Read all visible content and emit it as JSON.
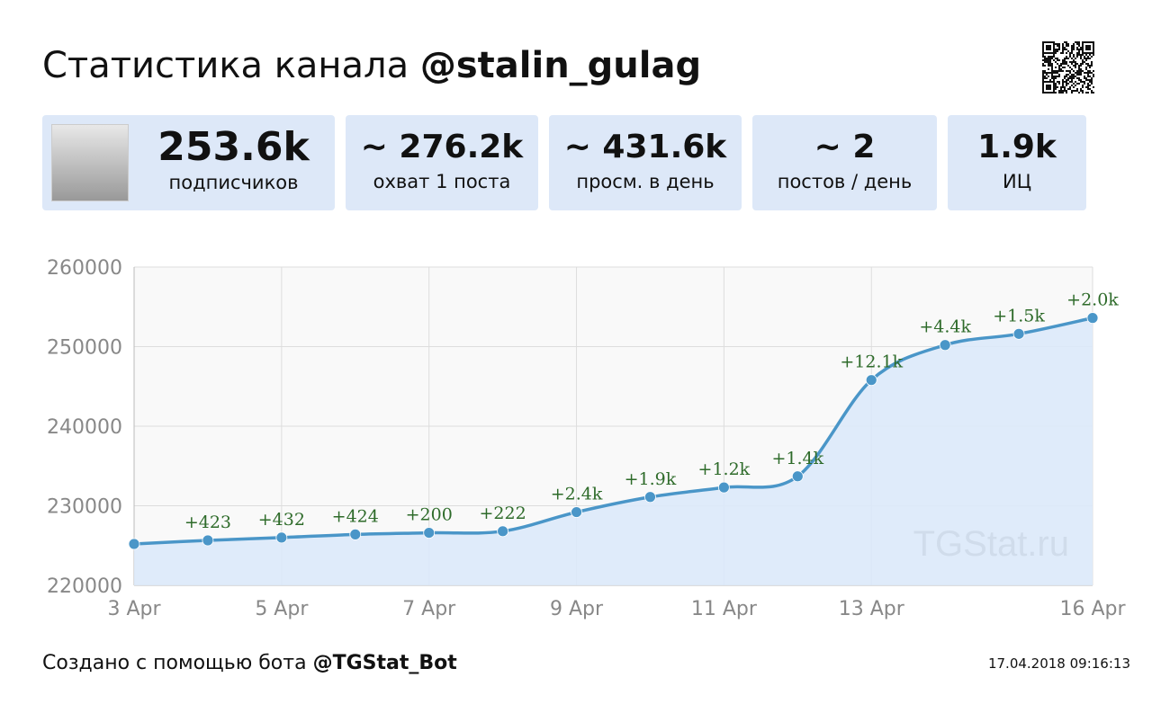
{
  "header": {
    "title_prefix": "Статистика канала ",
    "channel": "@stalin_gulag"
  },
  "stats": [
    {
      "value": "253.6k",
      "label": "подписчиков"
    },
    {
      "value": "~ 276.2k",
      "label": "охват 1 поста"
    },
    {
      "value": "~ 431.6k",
      "label": "просм. в день"
    },
    {
      "value": "~ 2",
      "label": "постов / день"
    },
    {
      "value": "1.9k",
      "label": "ИЦ"
    }
  ],
  "footer": {
    "text": "Создано с помощью бота ",
    "bot": "@TGStat_Bot",
    "timestamp": "17.04.2018 09:16:13"
  },
  "watermark": "TGStat.ru",
  "colors": {
    "line": "#4a96c8",
    "fill": "#dce9f9",
    "label": "#2e6b2a",
    "card": "#dde8f8"
  },
  "chart_data": {
    "type": "area",
    "x": [
      "3 Apr",
      "4 Apr",
      "5 Apr",
      "6 Apr",
      "7 Apr",
      "8 Apr",
      "9 Apr",
      "10 Apr",
      "11 Apr",
      "12 Apr",
      "13 Apr",
      "14 Apr",
      "15 Apr",
      "16 Apr"
    ],
    "values": [
      225200,
      225650,
      226000,
      226400,
      226600,
      226800,
      229200,
      231100,
      232300,
      233700,
      245800,
      250200,
      251600,
      253600
    ],
    "point_labels": [
      "",
      "+423",
      "+432",
      "+424",
      "+200",
      "+222",
      "+2.4k",
      "+1.9k",
      "+1.2k",
      "+1.4k",
      "+12.1k",
      "+4.4k",
      "+1.5k",
      "+2.0k"
    ],
    "x_ticks": [
      "3 Apr",
      "5 Apr",
      "7 Apr",
      "9 Apr",
      "11 Apr",
      "13 Apr",
      "16 Apr"
    ],
    "y_ticks": [
      "220000",
      "230000",
      "240000",
      "250000",
      "260000"
    ],
    "ylim": [
      220000,
      260000
    ],
    "grid": true
  }
}
